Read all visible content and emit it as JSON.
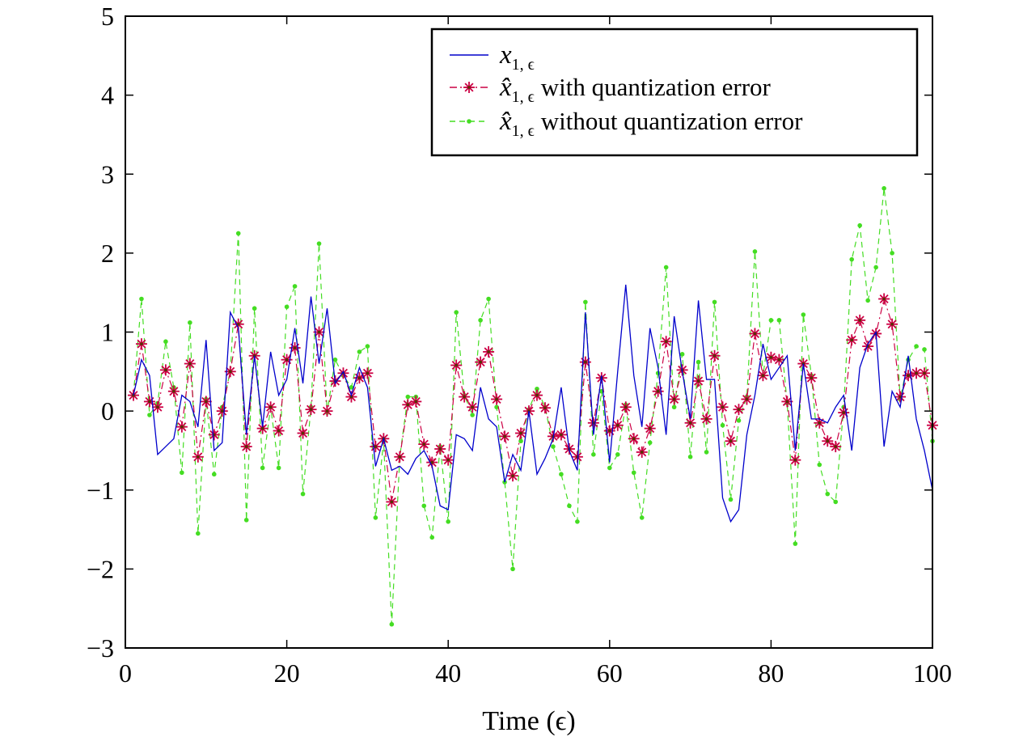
{
  "chart_data": {
    "type": "line",
    "title": "",
    "xlabel": "Time (ϵ)",
    "ylabel": "",
    "xlim": [
      0,
      100
    ],
    "ylim": [
      -3,
      5
    ],
    "xticks": [
      0,
      20,
      40,
      60,
      80,
      100
    ],
    "yticks": [
      -3,
      -2,
      -1,
      0,
      1,
      2,
      3,
      4,
      5
    ],
    "xtick_labels": [
      "0",
      "20",
      "40",
      "60",
      "80",
      "100"
    ],
    "ytick_labels": [
      "−3",
      "−2",
      "−1",
      "0",
      "1",
      "2",
      "3",
      "4",
      "5"
    ],
    "grid": false,
    "legend_position": "top-right",
    "series": [
      {
        "name": "x1,ϵ",
        "legend_symbol": "x",
        "legend_subscript": "1, ϵ",
        "legend_suffix": "",
        "color": "#0000cc",
        "style": "solid",
        "marker": "none",
        "x": [
          1,
          2,
          3,
          4,
          5,
          6,
          7,
          8,
          9,
          10,
          11,
          12,
          13,
          14,
          15,
          16,
          17,
          18,
          19,
          20,
          21,
          22,
          23,
          24,
          25,
          26,
          27,
          28,
          29,
          30,
          31,
          32,
          33,
          34,
          35,
          36,
          37,
          38,
          39,
          40,
          41,
          42,
          43,
          44,
          45,
          46,
          47,
          48,
          49,
          50,
          51,
          52,
          53,
          54,
          55,
          56,
          57,
          58,
          59,
          60,
          61,
          62,
          63,
          64,
          65,
          66,
          67,
          68,
          69,
          70,
          71,
          72,
          73,
          74,
          75,
          76,
          77,
          78,
          79,
          80,
          81,
          82,
          83,
          84,
          85,
          86,
          87,
          88,
          89,
          90,
          91,
          92,
          93,
          94,
          95,
          96,
          97,
          98,
          99,
          100
        ],
        "values": [
          0.2,
          0.65,
          0.45,
          -0.55,
          -0.45,
          -0.35,
          0.2,
          0.12,
          -0.2,
          0.9,
          -0.5,
          -0.4,
          1.25,
          1.05,
          -0.3,
          0.7,
          -0.2,
          0.75,
          0.2,
          0.4,
          1.05,
          0.35,
          1.45,
          0.6,
          1.3,
          0.35,
          0.5,
          0.2,
          0.55,
          0.3,
          -0.7,
          -0.35,
          -0.75,
          -0.7,
          -0.8,
          -0.6,
          -0.5,
          -0.7,
          -1.2,
          -1.25,
          -0.3,
          -0.35,
          -0.5,
          0.3,
          -0.1,
          -0.2,
          -0.9,
          -0.55,
          -0.75,
          0.0,
          -0.8,
          -0.6,
          -0.35,
          0.3,
          -0.5,
          -0.75,
          1.25,
          -0.3,
          0.45,
          -0.65,
          0.5,
          1.6,
          0.45,
          -0.2,
          1.05,
          0.55,
          -0.3,
          1.2,
          0.5,
          -0.1,
          1.4,
          0.4,
          0.4,
          -1.1,
          -1.4,
          -1.25,
          -0.3,
          0.2,
          0.85,
          0.4,
          0.55,
          0.7,
          -0.5,
          0.6,
          -0.1,
          -0.1,
          -0.15,
          0.05,
          0.2,
          -0.5,
          0.55,
          0.85,
          1.0,
          -0.45,
          0.25,
          0.05,
          0.7,
          -0.1,
          -0.5,
          -1.0
        ]
      },
      {
        "name": "x̂1,ϵ with quantization error",
        "legend_symbol": "x̂",
        "legend_subscript": "1, ϵ",
        "legend_suffix": "with quantization error",
        "color": "#cc0044",
        "style": "dashdot",
        "marker": "asterisk",
        "x": [
          1,
          2,
          3,
          4,
          5,
          6,
          7,
          8,
          9,
          10,
          11,
          12,
          13,
          14,
          15,
          16,
          17,
          18,
          19,
          20,
          21,
          22,
          23,
          24,
          25,
          26,
          27,
          28,
          29,
          30,
          31,
          32,
          33,
          34,
          35,
          36,
          37,
          38,
          39,
          40,
          41,
          42,
          43,
          44,
          45,
          46,
          47,
          48,
          49,
          50,
          51,
          52,
          53,
          54,
          55,
          56,
          57,
          58,
          59,
          60,
          61,
          62,
          63,
          64,
          65,
          66,
          67,
          68,
          69,
          70,
          71,
          72,
          73,
          74,
          75,
          76,
          77,
          78,
          79,
          80,
          81,
          82,
          83,
          84,
          85,
          86,
          87,
          88,
          89,
          90,
          91,
          92,
          93,
          94,
          95,
          96,
          97,
          98,
          99,
          100
        ],
        "values": [
          0.2,
          0.85,
          0.12,
          0.05,
          0.52,
          0.25,
          -0.2,
          0.6,
          -0.58,
          0.12,
          -0.3,
          0.0,
          0.5,
          1.1,
          -0.45,
          0.7,
          -0.22,
          0.05,
          -0.25,
          0.65,
          0.8,
          -0.28,
          0.02,
          1.0,
          0.0,
          0.38,
          0.48,
          0.18,
          0.42,
          0.48,
          -0.45,
          -0.35,
          -1.15,
          -0.58,
          0.08,
          0.12,
          -0.42,
          -0.65,
          -0.48,
          -0.62,
          0.58,
          0.18,
          0.05,
          0.62,
          0.75,
          0.15,
          -0.32,
          -0.82,
          -0.28,
          0.0,
          0.2,
          0.04,
          -0.32,
          -0.3,
          -0.48,
          -0.58,
          0.62,
          -0.15,
          0.42,
          -0.25,
          -0.18,
          0.05,
          -0.35,
          -0.52,
          -0.22,
          0.25,
          0.88,
          0.15,
          0.52,
          -0.15,
          0.38,
          -0.1,
          0.7,
          0.05,
          -0.38,
          0.02,
          0.15,
          0.98,
          0.45,
          0.68,
          0.65,
          0.12,
          -0.62,
          0.6,
          0.42,
          -0.15,
          -0.38,
          -0.45,
          -0.02,
          0.9,
          1.15,
          0.82,
          0.98,
          1.42,
          1.1,
          0.18,
          0.45,
          0.48,
          0.48,
          -0.18
        ]
      },
      {
        "name": "x̂1,ϵ without quantization error",
        "legend_symbol": "x̂",
        "legend_subscript": "1, ϵ",
        "legend_suffix": "without quantization error",
        "color": "#44dd22",
        "style": "dashed",
        "marker": "dot",
        "x": [
          1,
          2,
          3,
          4,
          5,
          6,
          7,
          8,
          9,
          10,
          11,
          12,
          13,
          14,
          15,
          16,
          17,
          18,
          19,
          20,
          21,
          22,
          23,
          24,
          25,
          26,
          27,
          28,
          29,
          30,
          31,
          32,
          33,
          34,
          35,
          36,
          37,
          38,
          39,
          40,
          41,
          42,
          43,
          44,
          45,
          46,
          47,
          48,
          49,
          50,
          51,
          52,
          53,
          54,
          55,
          56,
          57,
          58,
          59,
          60,
          61,
          62,
          63,
          64,
          65,
          66,
          67,
          68,
          69,
          70,
          71,
          72,
          73,
          74,
          75,
          76,
          77,
          78,
          79,
          80,
          81,
          82,
          83,
          84,
          85,
          86,
          87,
          88,
          89,
          90,
          91,
          92,
          93,
          94,
          95,
          96,
          97,
          98,
          99,
          100
        ],
        "values": [
          0.2,
          1.42,
          -0.05,
          0.1,
          0.88,
          0.3,
          -0.78,
          1.12,
          -1.55,
          0.15,
          -0.8,
          0.05,
          0.5,
          2.25,
          -1.38,
          1.3,
          -0.72,
          0.05,
          -0.72,
          1.32,
          1.58,
          -1.05,
          0.05,
          2.12,
          -0.02,
          0.65,
          0.45,
          0.3,
          0.75,
          0.82,
          -1.35,
          -0.38,
          -2.7,
          -0.58,
          0.18,
          0.18,
          -1.2,
          -1.6,
          -0.45,
          -1.4,
          1.25,
          0.2,
          -0.05,
          1.15,
          1.42,
          0.05,
          -0.9,
          -2.0,
          -0.38,
          0.02,
          0.28,
          0.05,
          -0.45,
          -0.8,
          -1.2,
          -1.4,
          1.38,
          -0.55,
          0.25,
          -0.72,
          -0.55,
          0.08,
          -0.78,
          -1.35,
          -0.4,
          0.48,
          1.82,
          0.05,
          0.72,
          -0.58,
          0.62,
          -0.52,
          1.38,
          -0.18,
          -1.12,
          -0.12,
          0.18,
          2.02,
          0.45,
          1.15,
          1.15,
          0.1,
          -1.68,
          1.22,
          0.45,
          -0.68,
          -1.05,
          -1.15,
          0.05,
          1.92,
          2.35,
          1.4,
          1.82,
          2.82,
          2.0,
          0.15,
          0.65,
          0.82,
          0.78,
          -0.38
        ]
      }
    ]
  }
}
